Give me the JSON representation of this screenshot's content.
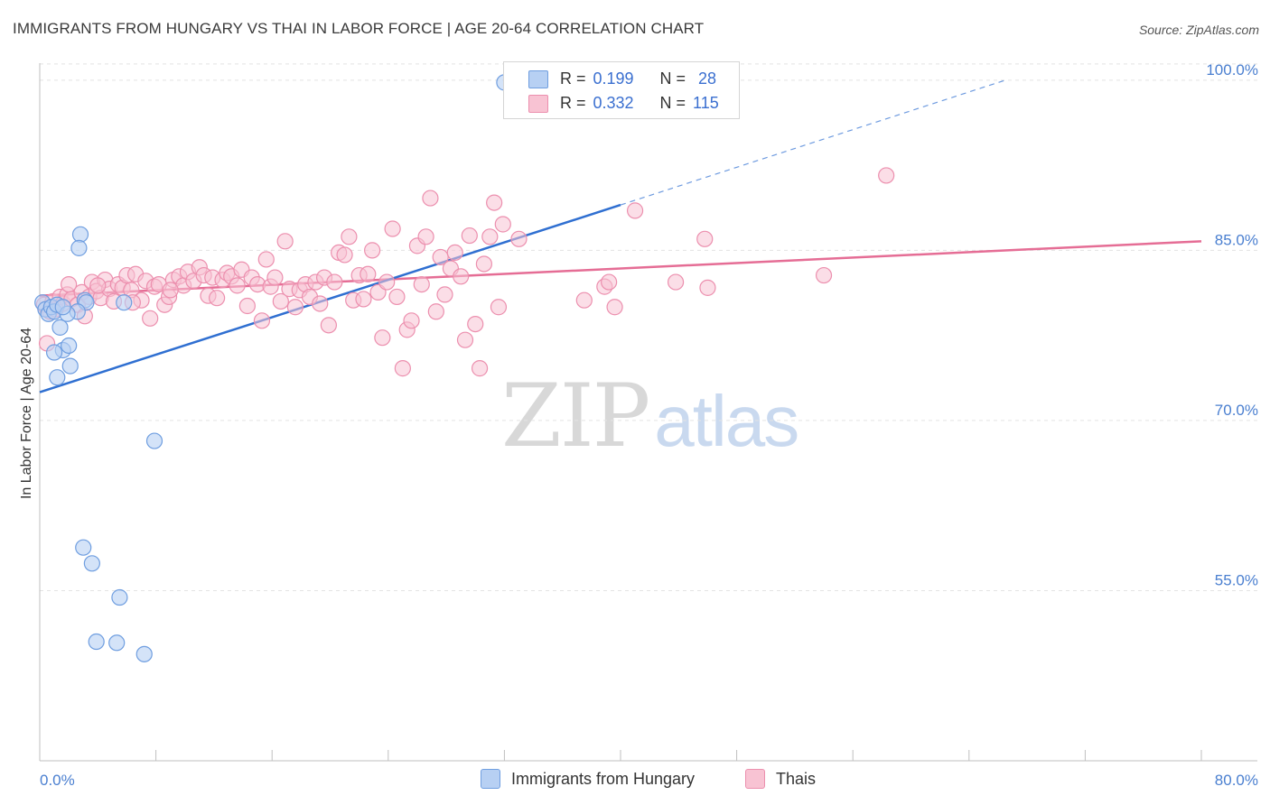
{
  "title": "IMMIGRANTS FROM HUNGARY VS THAI IN LABOR FORCE | AGE 20-64 CORRELATION CHART",
  "source": "Source: ZipAtlas.com",
  "watermark": {
    "zip": "ZIP",
    "atlas": "atlas"
  },
  "legend_top": {
    "rows": [
      {
        "r_label": "R =",
        "r_value": "0.199",
        "n_label": "N =",
        "n_value": "28"
      },
      {
        "r_label": "R =",
        "r_value": "0.332",
        "n_label": "N =",
        "n_value": "115"
      }
    ]
  },
  "colors": {
    "blue_fill": "#b7d0f3",
    "blue_stroke": "#6f9ee0",
    "blue_line": "#2f6fd1",
    "pink_fill": "#f8c3d3",
    "pink_stroke": "#ec8fae",
    "pink_line": "#e56d95",
    "grid": "#e3e3e3",
    "tick_label": "#4a7fd0"
  },
  "chart_data": {
    "type": "scatter",
    "title": "IMMIGRANTS FROM HUNGARY VS THAI IN LABOR FORCE | AGE 20-64 CORRELATION CHART",
    "xlabel": "",
    "ylabel": "In Labor Force | Age 20-64",
    "xlim": [
      0,
      80
    ],
    "ylim": [
      40,
      101.5
    ],
    "x_tick_labels": [
      "0.0%",
      "80.0%"
    ],
    "y_ticks": [
      55,
      70,
      85,
      100
    ],
    "y_tick_labels": [
      "55.0%",
      "70.0%",
      "85.0%",
      "100.0%"
    ],
    "grid": true,
    "legend_position": "bottom-center",
    "series": [
      {
        "name": "Immigrants from Hungary",
        "r": 0.199,
        "n": 28,
        "trend": {
          "x0": 0,
          "y0": 72.5,
          "x1": 40,
          "y1": 89.0,
          "dash_x_end": 66.5,
          "dash_y_end": 100.0
        },
        "points": [
          [
            0.2,
            80.4
          ],
          [
            0.4,
            79.8
          ],
          [
            0.6,
            79.4
          ],
          [
            0.8,
            80.0
          ],
          [
            1.0,
            79.6
          ],
          [
            1.2,
            80.2
          ],
          [
            1.4,
            78.2
          ],
          [
            1.6,
            76.2
          ],
          [
            1.0,
            76.0
          ],
          [
            1.2,
            73.8
          ],
          [
            2.0,
            76.6
          ],
          [
            2.1,
            74.8
          ],
          [
            2.8,
            86.4
          ],
          [
            2.7,
            85.2
          ],
          [
            3.1,
            80.6
          ],
          [
            3.2,
            80.4
          ],
          [
            2.6,
            79.6
          ],
          [
            1.9,
            79.4
          ],
          [
            5.8,
            80.4
          ],
          [
            32.0,
            99.8
          ],
          [
            7.9,
            68.2
          ],
          [
            3.0,
            58.8
          ],
          [
            3.6,
            57.4
          ],
          [
            5.5,
            54.4
          ],
          [
            3.9,
            50.5
          ],
          [
            5.3,
            50.4
          ],
          [
            7.2,
            49.4
          ],
          [
            1.6,
            80.0
          ]
        ]
      },
      {
        "name": "Thais",
        "r": 0.332,
        "n": 115,
        "trend": {
          "x0": 0,
          "y0": 81.0,
          "x1": 80,
          "y1": 85.8
        },
        "points": [
          [
            0.3,
            80.2
          ],
          [
            0.5,
            76.8
          ],
          [
            0.7,
            79.6
          ],
          [
            0.9,
            80.5
          ],
          [
            1.1,
            79.8
          ],
          [
            1.4,
            80.9
          ],
          [
            1.6,
            80.3
          ],
          [
            1.9,
            81.1
          ],
          [
            2.2,
            80.7
          ],
          [
            2.6,
            80.2
          ],
          [
            2.9,
            81.3
          ],
          [
            3.1,
            79.2
          ],
          [
            3.4,
            80.9
          ],
          [
            3.6,
            82.2
          ],
          [
            3.9,
            81.4
          ],
          [
            4.2,
            80.8
          ],
          [
            4.5,
            82.4
          ],
          [
            4.8,
            81.6
          ],
          [
            5.1,
            80.5
          ],
          [
            5.4,
            82.0
          ],
          [
            5.7,
            81.7
          ],
          [
            6.0,
            82.8
          ],
          [
            6.3,
            81.5
          ],
          [
            6.6,
            82.9
          ],
          [
            7.0,
            80.6
          ],
          [
            7.3,
            82.3
          ],
          [
            7.6,
            79.0
          ],
          [
            7.9,
            81.8
          ],
          [
            8.2,
            82.0
          ],
          [
            8.6,
            80.2
          ],
          [
            8.9,
            80.9
          ],
          [
            9.2,
            82.4
          ],
          [
            9.6,
            82.7
          ],
          [
            9.9,
            81.9
          ],
          [
            10.2,
            83.1
          ],
          [
            10.6,
            82.3
          ],
          [
            11.0,
            83.5
          ],
          [
            11.3,
            82.8
          ],
          [
            11.6,
            81.0
          ],
          [
            11.9,
            82.6
          ],
          [
            12.2,
            80.8
          ],
          [
            12.6,
            82.4
          ],
          [
            12.9,
            83.0
          ],
          [
            13.2,
            82.7
          ],
          [
            13.6,
            81.9
          ],
          [
            13.9,
            83.3
          ],
          [
            14.3,
            80.1
          ],
          [
            14.6,
            82.6
          ],
          [
            15.0,
            82.0
          ],
          [
            15.3,
            78.8
          ],
          [
            15.6,
            84.2
          ],
          [
            15.9,
            81.8
          ],
          [
            16.2,
            82.6
          ],
          [
            16.6,
            80.5
          ],
          [
            16.9,
            85.8
          ],
          [
            17.2,
            81.6
          ],
          [
            17.6,
            80.0
          ],
          [
            17.9,
            81.5
          ],
          [
            18.3,
            82.0
          ],
          [
            18.6,
            80.9
          ],
          [
            19.0,
            82.2
          ],
          [
            19.3,
            80.3
          ],
          [
            19.6,
            82.6
          ],
          [
            19.9,
            78.4
          ],
          [
            20.3,
            82.2
          ],
          [
            20.6,
            84.8
          ],
          [
            21.0,
            84.6
          ],
          [
            21.3,
            86.2
          ],
          [
            21.6,
            80.6
          ],
          [
            22.0,
            82.8
          ],
          [
            22.3,
            80.7
          ],
          [
            22.6,
            82.9
          ],
          [
            22.9,
            85.0
          ],
          [
            23.3,
            81.3
          ],
          [
            23.6,
            77.3
          ],
          [
            23.9,
            82.2
          ],
          [
            24.3,
            86.9
          ],
          [
            24.6,
            80.9
          ],
          [
            25.0,
            74.6
          ],
          [
            25.3,
            78.0
          ],
          [
            25.6,
            78.8
          ],
          [
            26.0,
            85.4
          ],
          [
            26.3,
            82.0
          ],
          [
            26.6,
            86.2
          ],
          [
            26.9,
            89.6
          ],
          [
            27.3,
            79.6
          ],
          [
            27.6,
            84.4
          ],
          [
            27.9,
            81.1
          ],
          [
            28.3,
            83.4
          ],
          [
            28.6,
            84.8
          ],
          [
            29.0,
            82.7
          ],
          [
            29.3,
            77.1
          ],
          [
            29.6,
            86.3
          ],
          [
            30.0,
            78.5
          ],
          [
            30.3,
            74.6
          ],
          [
            30.6,
            83.8
          ],
          [
            31.0,
            86.2
          ],
          [
            31.3,
            89.2
          ],
          [
            31.6,
            80.0
          ],
          [
            31.9,
            87.3
          ],
          [
            33.0,
            86.0
          ],
          [
            37.5,
            80.6
          ],
          [
            38.9,
            81.8
          ],
          [
            39.2,
            82.2
          ],
          [
            39.6,
            80.0
          ],
          [
            41.0,
            88.5
          ],
          [
            43.8,
            82.2
          ],
          [
            45.8,
            86.0
          ],
          [
            46.0,
            81.7
          ],
          [
            54.0,
            82.8
          ],
          [
            58.3,
            91.6
          ],
          [
            2.0,
            82.0
          ],
          [
            4.0,
            81.9
          ],
          [
            6.4,
            80.4
          ],
          [
            9.0,
            81.5
          ]
        ]
      }
    ]
  },
  "legend_bottom": {
    "items": [
      {
        "label": "Immigrants from Hungary"
      },
      {
        "label": "Thais"
      }
    ]
  }
}
